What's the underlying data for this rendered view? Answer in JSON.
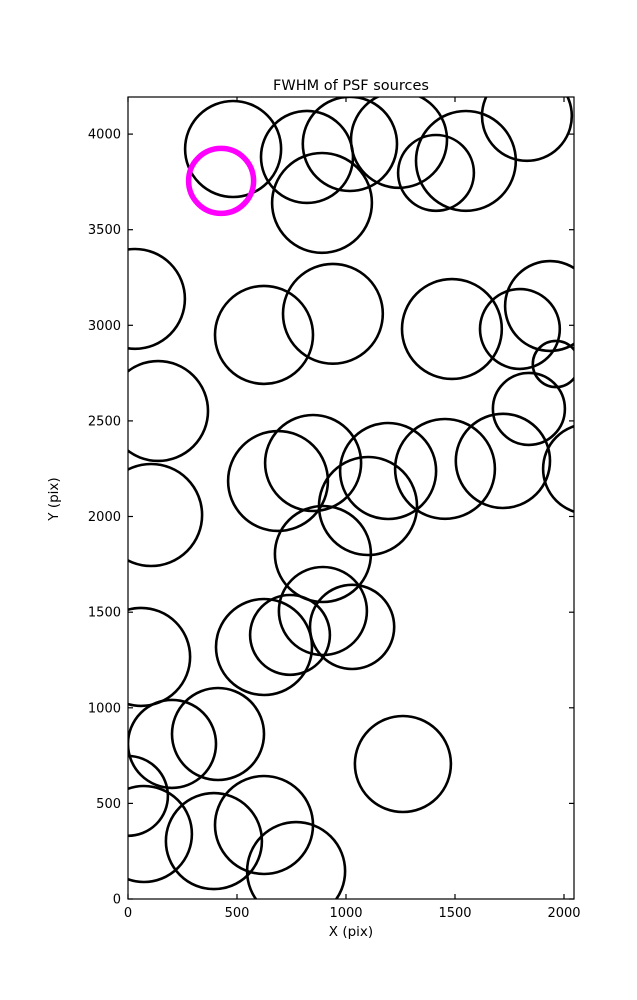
{
  "figure": {
    "background": "#ffffff"
  },
  "chart_data": {
    "type": "scatter",
    "title": "FWHM of PSF sources",
    "xlabel": "X (pix)",
    "ylabel": "Y (pix)",
    "xlim": [
      0,
      2046
    ],
    "ylim": [
      0,
      4194
    ],
    "x_ticks": [
      0,
      500,
      1000,
      1500,
      2000
    ],
    "y_ticks": [
      0,
      500,
      1000,
      1500,
      2000,
      2500,
      3000,
      3500,
      4000
    ],
    "grid": false,
    "legend": null,
    "marker": "open-circle",
    "colors": {
      "default_stroke": "#000000",
      "highlight_stroke": "#FF00FF",
      "axes": "#000000",
      "background": "#ffffff"
    },
    "stroke_width_default": 2.6,
    "stroke_width_highlight": 5.5,
    "points": [
      {
        "x": 482,
        "y": 3922,
        "r": 220
      },
      {
        "x": 427,
        "y": 3755,
        "r": 149,
        "highlight": true
      },
      {
        "x": 821,
        "y": 3881,
        "r": 211
      },
      {
        "x": 1018,
        "y": 3949,
        "r": 216
      },
      {
        "x": 1243,
        "y": 3970,
        "r": 220
      },
      {
        "x": 1413,
        "y": 3797,
        "r": 174
      },
      {
        "x": 1550,
        "y": 3860,
        "r": 229
      },
      {
        "x": 1830,
        "y": 4095,
        "r": 206
      },
      {
        "x": 890,
        "y": 3640,
        "r": 229
      },
      {
        "x": 32,
        "y": 3138,
        "r": 229
      },
      {
        "x": 624,
        "y": 2950,
        "r": 225
      },
      {
        "x": 940,
        "y": 3060,
        "r": 229
      },
      {
        "x": 1486,
        "y": 2981,
        "r": 229
      },
      {
        "x": 1936,
        "y": 3101,
        "r": 206
      },
      {
        "x": 1798,
        "y": 2981,
        "r": 183
      },
      {
        "x": 1963,
        "y": 2798,
        "r": 106
      },
      {
        "x": 1839,
        "y": 2563,
        "r": 165
      },
      {
        "x": 138,
        "y": 2552,
        "r": 229
      },
      {
        "x": 106,
        "y": 2008,
        "r": 234
      },
      {
        "x": 688,
        "y": 2186,
        "r": 229
      },
      {
        "x": 849,
        "y": 2280,
        "r": 220
      },
      {
        "x": 894,
        "y": 1804,
        "r": 220
      },
      {
        "x": 1101,
        "y": 2055,
        "r": 225
      },
      {
        "x": 1193,
        "y": 2238,
        "r": 220
      },
      {
        "x": 1454,
        "y": 2249,
        "r": 229
      },
      {
        "x": 1720,
        "y": 2291,
        "r": 216
      },
      {
        "x": 2110,
        "y": 2249,
        "r": 206
      },
      {
        "x": 60,
        "y": 1266,
        "r": 225
      },
      {
        "x": 624,
        "y": 1318,
        "r": 220
      },
      {
        "x": 743,
        "y": 1381,
        "r": 183
      },
      {
        "x": 894,
        "y": 1506,
        "r": 202
      },
      {
        "x": 1028,
        "y": 1423,
        "r": 193
      },
      {
        "x": 413,
        "y": 863,
        "r": 211
      },
      {
        "x": 202,
        "y": 811,
        "r": 202
      },
      {
        "x": 1261,
        "y": 706,
        "r": 220
      },
      {
        "x": 73,
        "y": 340,
        "r": 220
      },
      {
        "x": 0,
        "y": 539,
        "r": 183
      },
      {
        "x": 394,
        "y": 303,
        "r": 220
      },
      {
        "x": 624,
        "y": 387,
        "r": 225
      },
      {
        "x": 771,
        "y": 146,
        "r": 225
      }
    ]
  }
}
